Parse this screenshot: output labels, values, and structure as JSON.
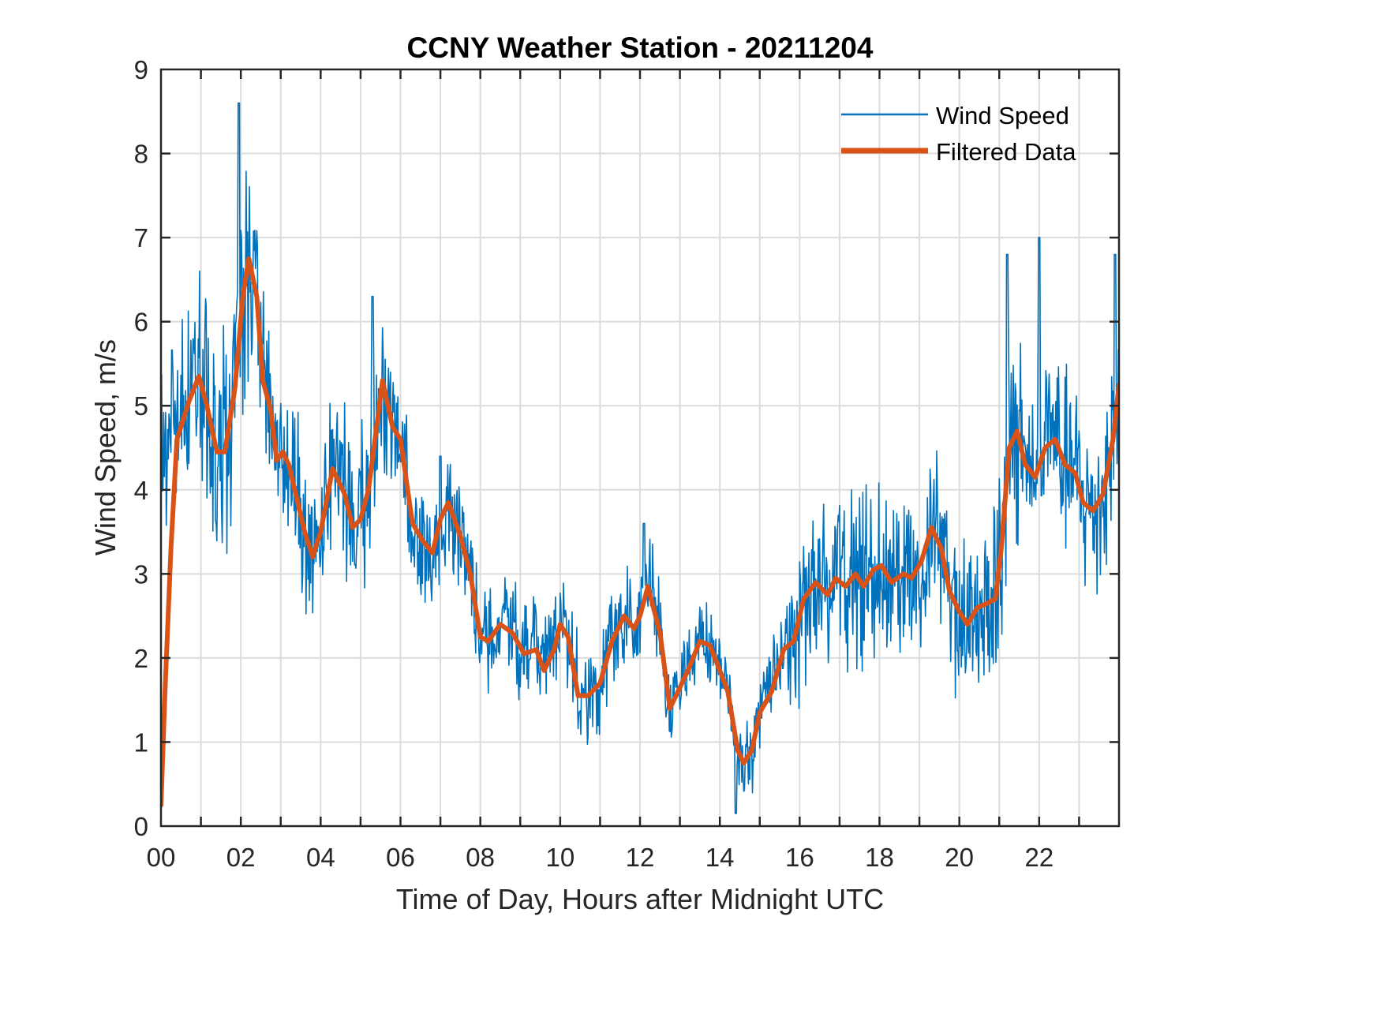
{
  "chart_data": {
    "type": "line",
    "title": "CCNY Weather Station - 20211204",
    "xlabel": "Time of Day, Hours after Midnight UTC",
    "ylabel": "Wind Speed, m/s",
    "xlim": [
      0,
      24
    ],
    "ylim": [
      0,
      9
    ],
    "xticks": [
      0,
      2,
      4,
      6,
      8,
      10,
      12,
      14,
      16,
      18,
      20,
      22
    ],
    "xtick_labels": [
      "00",
      "02",
      "04",
      "06",
      "08",
      "10",
      "12",
      "14",
      "16",
      "18",
      "20",
      "22"
    ],
    "xminor_step": 1,
    "yticks": [
      0,
      1,
      2,
      3,
      4,
      5,
      6,
      7,
      8,
      9
    ],
    "ytick_labels": [
      "0",
      "1",
      "2",
      "3",
      "4",
      "5",
      "6",
      "7",
      "8",
      "9"
    ],
    "grid": true,
    "legend_position": "top-right",
    "series": [
      {
        "name": "Wind Speed",
        "color": "#0072BD",
        "style": "thin",
        "description": "Raw high-frequency wind speed; oscillates around filtered curve",
        "noise_amplitude": {
          "x": [
            0,
            0.5,
            1.5,
            2.0,
            2.5,
            4,
            5.5,
            7,
            8,
            10,
            12,
            13,
            14.5,
            15.5,
            16,
            19,
            20,
            21,
            22,
            23,
            24
          ],
          "amp": [
            1.6,
            1.5,
            1.7,
            1.9,
            1.4,
            1.1,
            1.2,
            0.9,
            0.7,
            0.8,
            0.8,
            0.6,
            0.5,
            0.7,
            1.2,
            1.3,
            1.2,
            1.6,
            1.4,
            1.3,
            1.4
          ]
        },
        "extremes": [
          {
            "x": 1.95,
            "y": 8.6
          },
          {
            "x": 5.3,
            "y": 6.3
          },
          {
            "x": 7.0,
            "y": 4.4
          },
          {
            "x": 12.1,
            "y": 3.6
          },
          {
            "x": 14.4,
            "y": 0.15
          },
          {
            "x": 21.2,
            "y": 6.8
          },
          {
            "x": 22.0,
            "y": 7.0
          },
          {
            "x": 23.9,
            "y": 6.8
          }
        ]
      },
      {
        "name": "Filtered Data",
        "color": "#D95319",
        "style": "thick",
        "x": [
          0.0,
          0.1,
          0.25,
          0.4,
          0.5,
          0.7,
          0.95,
          1.15,
          1.4,
          1.6,
          1.85,
          2.05,
          2.2,
          2.4,
          2.55,
          2.75,
          2.9,
          3.05,
          3.2,
          3.4,
          3.6,
          3.8,
          4.0,
          4.3,
          4.6,
          4.8,
          5.0,
          5.2,
          5.55,
          5.8,
          6.0,
          6.3,
          6.55,
          6.8,
          7.0,
          7.2,
          7.5,
          7.75,
          8.0,
          8.2,
          8.5,
          8.8,
          9.1,
          9.4,
          9.6,
          9.85,
          10.0,
          10.2,
          10.45,
          10.7,
          11.0,
          11.3,
          11.6,
          11.85,
          12.0,
          12.2,
          12.5,
          12.75,
          13.0,
          13.2,
          13.5,
          13.75,
          14.0,
          14.2,
          14.45,
          14.6,
          14.8,
          15.0,
          15.3,
          15.6,
          15.85,
          16.1,
          16.4,
          16.7,
          16.9,
          17.15,
          17.4,
          17.6,
          17.85,
          18.05,
          18.3,
          18.6,
          18.8,
          19.05,
          19.3,
          19.55,
          19.75,
          20.0,
          20.2,
          20.45,
          20.7,
          20.9,
          21.05,
          21.25,
          21.45,
          21.65,
          21.9,
          22.15,
          22.4,
          22.65,
          22.9,
          23.1,
          23.35,
          23.6,
          23.85,
          24.0
        ],
        "values": [
          0.25,
          1.6,
          3.3,
          4.6,
          4.75,
          5.05,
          5.35,
          5.0,
          4.45,
          4.45,
          5.2,
          6.3,
          6.75,
          6.3,
          5.3,
          4.95,
          4.35,
          4.45,
          4.3,
          3.9,
          3.5,
          3.2,
          3.5,
          4.25,
          3.95,
          3.55,
          3.65,
          4.0,
          5.3,
          4.75,
          4.6,
          3.6,
          3.4,
          3.25,
          3.65,
          3.85,
          3.45,
          3.0,
          2.25,
          2.2,
          2.4,
          2.3,
          2.05,
          2.1,
          1.85,
          2.1,
          2.4,
          2.25,
          1.55,
          1.55,
          1.7,
          2.2,
          2.5,
          2.35,
          2.5,
          2.85,
          2.3,
          1.4,
          1.65,
          1.85,
          2.2,
          2.15,
          1.85,
          1.6,
          0.9,
          0.75,
          0.9,
          1.35,
          1.6,
          2.1,
          2.2,
          2.7,
          2.9,
          2.75,
          2.95,
          2.85,
          3.0,
          2.85,
          3.05,
          3.1,
          2.9,
          3.0,
          2.95,
          3.15,
          3.55,
          3.3,
          2.8,
          2.55,
          2.4,
          2.6,
          2.65,
          2.7,
          3.3,
          4.5,
          4.7,
          4.3,
          4.15,
          4.5,
          4.6,
          4.3,
          4.2,
          3.85,
          3.75,
          3.95,
          4.6,
          5.25
        ]
      }
    ]
  }
}
